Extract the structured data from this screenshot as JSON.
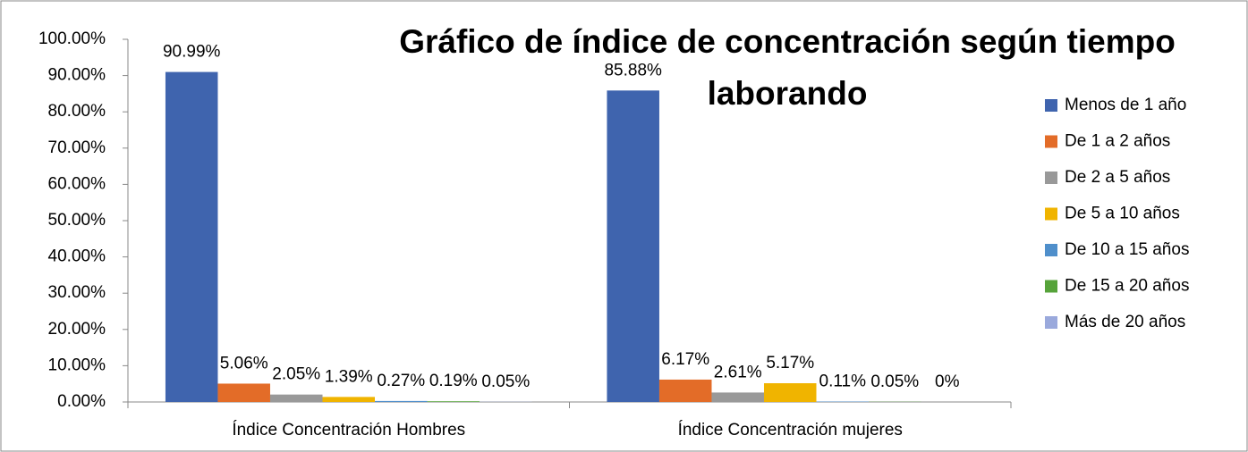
{
  "chart_data": {
    "type": "bar",
    "title": "Gráfico de índice de concentración según tiempo laborando",
    "categories": [
      "Índice Concentración Hombres",
      "Índice Concentración mujeres"
    ],
    "series": [
      {
        "name": "Menos de 1 año",
        "color": "#3f64ae",
        "values": [
          90.99,
          85.88
        ],
        "value_labels": [
          "90.99%",
          "85.88%"
        ]
      },
      {
        "name": "De 1 a 2 años",
        "color": "#e36c28",
        "values": [
          5.06,
          6.17
        ],
        "value_labels": [
          "5.06%",
          "6.17%"
        ]
      },
      {
        "name": "De 2 a 5 años",
        "color": "#999999",
        "values": [
          2.05,
          2.61
        ],
        "value_labels": [
          "2.05%",
          "2.61%"
        ]
      },
      {
        "name": "De 5 a 10 años",
        "color": "#f0b400",
        "values": [
          1.39,
          5.17
        ],
        "value_labels": [
          "1.39%",
          "5.17%"
        ]
      },
      {
        "name": "De 10 a 15 años",
        "color": "#4f8fcb",
        "values": [
          0.27,
          0.11
        ],
        "value_labels": [
          "0.27%",
          "0.11%"
        ]
      },
      {
        "name": "De 15 a 20 años",
        "color": "#56a33a",
        "values": [
          0.19,
          0.05
        ],
        "value_labels": [
          "0.19%",
          "0.05%"
        ]
      },
      {
        "name": "Más de 20 años",
        "color": "#9aa9dc",
        "values": [
          0.05,
          0
        ],
        "value_labels": [
          "0.05%",
          "0%"
        ]
      }
    ],
    "ylim": [
      0,
      100
    ],
    "yticks": [
      {
        "value": 0,
        "label": "0.00%"
      },
      {
        "value": 10,
        "label": "10.00%"
      },
      {
        "value": 20,
        "label": "20.00%"
      },
      {
        "value": 30,
        "label": "30.00%"
      },
      {
        "value": 40,
        "label": "40.00%"
      },
      {
        "value": 50,
        "label": "50.00%"
      },
      {
        "value": 60,
        "label": "60.00%"
      },
      {
        "value": 70,
        "label": "70.00%"
      },
      {
        "value": 80,
        "label": "80.00%"
      },
      {
        "value": 90,
        "label": "90.00%"
      },
      {
        "value": 100,
        "label": "100.00%"
      }
    ],
    "grid": false,
    "legend": "right"
  }
}
